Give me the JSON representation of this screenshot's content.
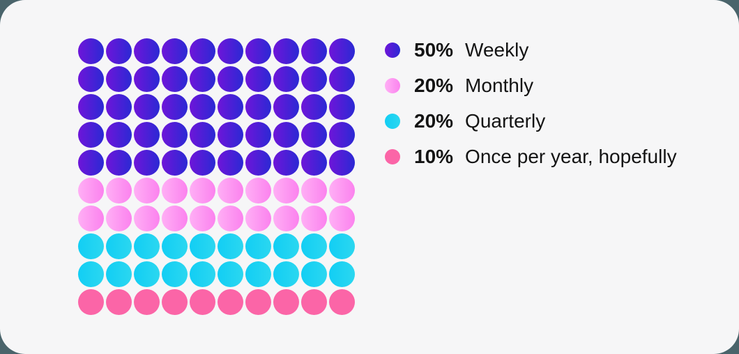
{
  "page": {
    "background_color": "#4a646b",
    "card_background_color": "#f6f6f7",
    "text_color": "#141414"
  },
  "chart_data": {
    "type": "waffle",
    "title": "",
    "grid": {
      "rows": 10,
      "columns": 10,
      "total_dots": 100,
      "fill_order": "row-major from top-left"
    },
    "series": [
      {
        "name": "Weekly",
        "percent": 50,
        "dots": 50,
        "gradient": [
          "#6e15d9",
          "#2b29d4"
        ]
      },
      {
        "name": "Monthly",
        "percent": 20,
        "dots": 20,
        "gradient": [
          "#ffaff5",
          "#fb82ee"
        ]
      },
      {
        "name": "Quarterly",
        "percent": 20,
        "dots": 20,
        "gradient": [
          "#12cef4",
          "#2bd7f0"
        ]
      },
      {
        "name": "Once per year, hopefully",
        "percent": 10,
        "dots": 10,
        "gradient": [
          "#fb65a7",
          "#fb65a7"
        ]
      }
    ],
    "legend_position": "right"
  },
  "legend": {
    "items": [
      {
        "percent": "50%",
        "label": "Weekly"
      },
      {
        "percent": "20%",
        "label": "Monthly"
      },
      {
        "percent": "20%",
        "label": "Quarterly"
      },
      {
        "percent": "10%",
        "label": "Once per year, hopefully"
      }
    ]
  }
}
